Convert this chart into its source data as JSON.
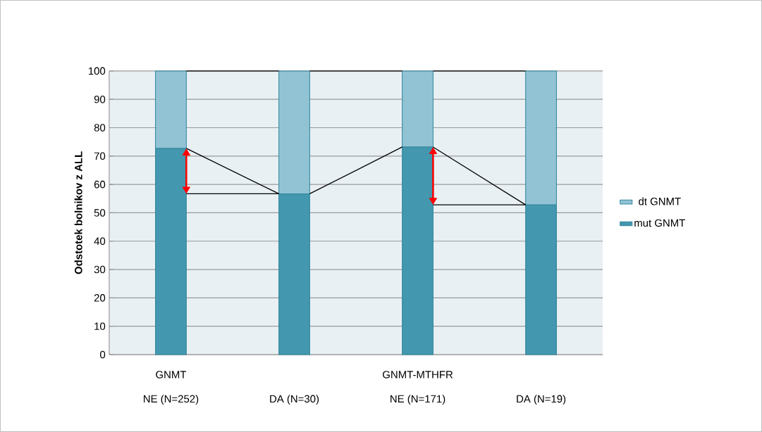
{
  "chart_data": {
    "type": "bar",
    "stacked": true,
    "ylabel": "Odstotek bolnikov z ALL",
    "categories": [
      "NE (N=252)",
      "DA (N=30)",
      "NE (N=171)",
      "DA (N=19)"
    ],
    "series": [
      {
        "name": "mut GNMT",
        "color": "#4397ae",
        "values": [
          72.7,
          56.7,
          73.2,
          52.8
        ]
      },
      {
        "name": "dt GNMT",
        "color": "#92c3d4",
        "values": [
          27.3,
          43.3,
          26.8,
          47.2
        ]
      }
    ],
    "ylim": [
      0,
      100
    ],
    "yticks": [
      0,
      10,
      20,
      30,
      40,
      50,
      60,
      70,
      80,
      90,
      100
    ],
    "grid": "y",
    "legend": "right",
    "annotations": [
      "GNMT",
      "GNMT-MTHFR"
    ]
  }
}
